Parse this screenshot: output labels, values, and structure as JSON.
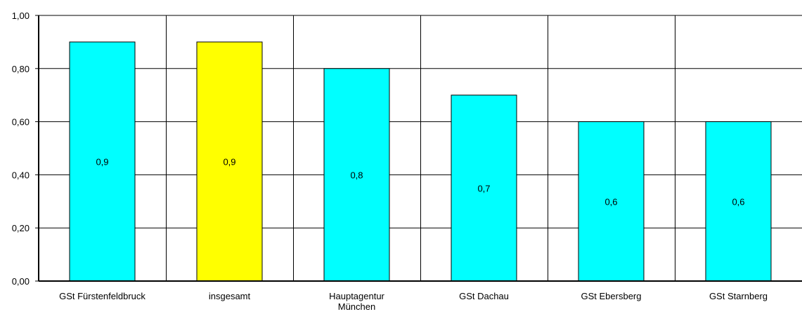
{
  "chart_data": {
    "type": "bar",
    "categories": [
      [
        "GSt Fürstenfeldbruck"
      ],
      [
        "insgesamt"
      ],
      [
        "Hauptagentur",
        "München"
      ],
      [
        "GSt Dachau"
      ],
      [
        "GSt Ebersberg"
      ],
      [
        "GSt Starnberg"
      ]
    ],
    "values": [
      0.9,
      0.9,
      0.8,
      0.7,
      0.6,
      0.6
    ],
    "data_labels": [
      "0,9",
      "0,9",
      "0,8",
      "0,7",
      "0,6",
      "0,6"
    ],
    "highlight_index": 1,
    "ylim": [
      0,
      1.0
    ],
    "yticks": [
      0,
      0.2,
      0.4,
      0.6,
      0.8,
      1.0
    ],
    "ytick_labels": [
      "0,00",
      "0,20",
      "0,40",
      "0,60",
      "0,80",
      "1,00"
    ],
    "title": "",
    "xlabel": "",
    "ylabel": "",
    "grid": true,
    "legend": "none",
    "colors": {
      "bar": "#00FFFF",
      "highlight": "#FFFF00",
      "outline": "#000000",
      "grid": "#000000"
    }
  }
}
